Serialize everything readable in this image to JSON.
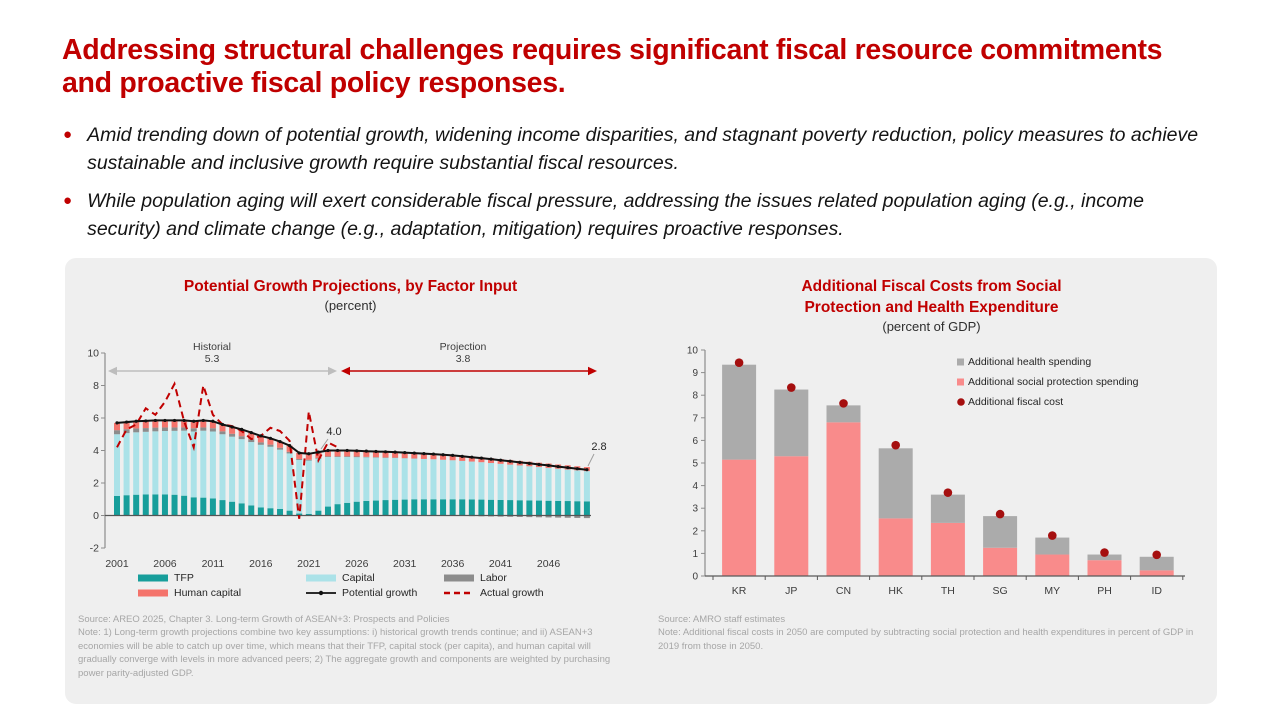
{
  "slide": {
    "title": "Addressing structural challenges requires significant fiscal resource commitments and proactive fiscal policy responses.",
    "bullets": [
      "Amid trending down of potential growth, widening income disparities, and stagnant poverty reduction, policy measures to achieve sustainable and inclusive growth require substantial fiscal resources.",
      "While population aging will exert considerable fiscal pressure, addressing the issues related population aging (e.g., income security) and climate change (e.g., adaptation, mitigation) requires proactive responses."
    ],
    "accent_color": "#C00000"
  },
  "left_chart": {
    "title": "Potential Growth Projections, by Factor Input",
    "subtitle": "(percent)",
    "annotations": {
      "historical_label": "Historial",
      "historical_value": "5.3",
      "projection_label": "Projection",
      "projection_value": "3.8",
      "mid_callout": "4.0",
      "end_callout": "2.8"
    },
    "legend": [
      {
        "label": "TFP",
        "swatch": "bar",
        "color": "#179E9B"
      },
      {
        "label": "Capital",
        "swatch": "bar",
        "color": "#ABE2E8"
      },
      {
        "label": "Labor",
        "swatch": "bar",
        "color": "#8C8C8C"
      },
      {
        "label": "Human capital",
        "swatch": "bar",
        "color": "#F4736B"
      },
      {
        "label": "Potential growth",
        "swatch": "line-dot",
        "color": "#111111"
      },
      {
        "label": "Actual growth",
        "swatch": "dash",
        "color": "#C00000"
      }
    ],
    "source": "Source: AREO 2025, Chapter 3. Long-term Growth of ASEAN+3: Prospects and Policies",
    "note": "Note: 1) Long-term growth projections combine two key assumptions: i) historical growth trends continue; and ii) ASEAN+3 economies will be able to catch up over time, which means that their TFP, capital stock (per capita), and human capital will gradually converge with levels in more advanced peers; 2) The aggregate growth and components are weighted by purchasing power parity-adjusted GDP."
  },
  "right_chart": {
    "title_lines": [
      "Additional Fiscal Costs from Social",
      "Protection and Health Expenditure"
    ],
    "subtitle": "(percent of GDP)",
    "legend": [
      {
        "label": "Additional health spending",
        "swatch": "square",
        "color": "#ABABAB"
      },
      {
        "label": "Additional social protection spending",
        "swatch": "square",
        "color": "#F98B8B"
      },
      {
        "label": "Additional fiscal cost",
        "swatch": "dot",
        "color": "#A50F0F"
      }
    ],
    "source": "Source: AMRO staff estimates",
    "note": "Note: Additional fiscal costs in 2050 are computed by subtracting social protection and health expenditures in percent of GDP in 2019 from those in 2050."
  },
  "chart_data": [
    {
      "type": "stacked-bar-line",
      "title": "Potential Growth Projections, by Factor Input",
      "ylabel": "percent",
      "ylim": [
        -2,
        10
      ],
      "x_start": 2001,
      "x_end": 2050,
      "x_ticks": [
        2001,
        2006,
        2011,
        2016,
        2021,
        2026,
        2031,
        2036,
        2041,
        2046
      ],
      "y_ticks": [
        -2,
        0,
        2,
        4,
        6,
        8,
        10
      ],
      "period_averages": {
        "historical": 5.3,
        "projection": 3.8,
        "callout_2023": 4.0,
        "callout_2050": 2.8
      },
      "series": [
        {
          "name": "TFP",
          "color": "#179E9B",
          "values": [
            1.2,
            1.25,
            1.28,
            1.3,
            1.3,
            1.3,
            1.28,
            1.22,
            1.12,
            1.1,
            1.05,
            0.95,
            0.85,
            0.75,
            0.62,
            0.5,
            0.45,
            0.4,
            0.3,
            0.12,
            0.1,
            0.3,
            0.55,
            0.7,
            0.78,
            0.85,
            0.9,
            0.92,
            0.95,
            0.97,
            0.98,
            1.0,
            1.0,
            1.0,
            1.0,
            1.0,
            1.0,
            0.99,
            0.98,
            0.97,
            0.96,
            0.95,
            0.94,
            0.93,
            0.92,
            0.91,
            0.9,
            0.89,
            0.88,
            0.87
          ]
        },
        {
          "name": "Capital",
          "color": "#ABE2E8",
          "values": [
            3.8,
            3.82,
            3.84,
            3.85,
            3.88,
            3.9,
            3.93,
            4.0,
            4.05,
            4.12,
            4.12,
            4.05,
            4.0,
            3.95,
            3.9,
            3.85,
            3.78,
            3.65,
            3.52,
            3.3,
            3.28,
            3.2,
            3.05,
            2.9,
            2.82,
            2.74,
            2.68,
            2.64,
            2.6,
            2.57,
            2.54,
            2.5,
            2.48,
            2.46,
            2.43,
            2.4,
            2.36,
            2.33,
            2.3,
            2.26,
            2.22,
            2.18,
            2.14,
            2.1,
            2.06,
            2.02,
            1.98,
            1.94,
            1.9,
            1.86
          ]
        },
        {
          "name": "Labor",
          "color": "#8C8C8C",
          "values": [
            0.25,
            0.24,
            0.24,
            0.23,
            0.23,
            0.22,
            0.21,
            0.2,
            0.2,
            0.2,
            0.2,
            0.18,
            0.18,
            0.18,
            0.17,
            0.15,
            0.13,
            0.12,
            0.1,
            0.06,
            0.05,
            0.04,
            0.04,
            0.04,
            0.04,
            0.04,
            0.03,
            0.03,
            0.02,
            0.02,
            0.01,
            0.01,
            0.0,
            0.0,
            -0.01,
            -0.02,
            -0.03,
            -0.04,
            -0.05,
            -0.06,
            -0.07,
            -0.08,
            -0.09,
            -0.1,
            -0.11,
            -0.12,
            -0.13,
            -0.14,
            -0.15,
            -0.16
          ]
        },
        {
          "name": "Human capital",
          "color": "#F4736B",
          "values": [
            0.45,
            0.44,
            0.44,
            0.44,
            0.44,
            0.43,
            0.43,
            0.43,
            0.43,
            0.43,
            0.43,
            0.42,
            0.42,
            0.42,
            0.41,
            0.4,
            0.39,
            0.38,
            0.38,
            0.37,
            0.37,
            0.36,
            0.36,
            0.36,
            0.36,
            0.35,
            0.35,
            0.35,
            0.35,
            0.34,
            0.34,
            0.33,
            0.33,
            0.32,
            0.32,
            0.32,
            0.31,
            0.31,
            0.3,
            0.3,
            0.29,
            0.29,
            0.28,
            0.28,
            0.27,
            0.27,
            0.26,
            0.26,
            0.25,
            0.25
          ]
        }
      ],
      "lines": [
        {
          "name": "Potential growth",
          "color": "#111111",
          "style": "solid-dot",
          "values": "sum_of_series"
        },
        {
          "name": "Actual growth",
          "color": "#C00000",
          "style": "dashed",
          "x_start": 2001,
          "values": [
            4.2,
            5.3,
            5.6,
            6.6,
            6.2,
            7.0,
            8.1,
            5.8,
            4.2,
            8.0,
            6.2,
            5.6,
            5.5,
            5.2,
            4.7,
            4.9,
            5.4,
            5.2,
            4.6,
            -0.2,
            6.4,
            3.4,
            4.5,
            4.2
          ]
        }
      ]
    },
    {
      "type": "stacked-bar",
      "title": "Additional Fiscal Costs from Social Protection and Health Expenditure",
      "ylabel": "percent of GDP",
      "ylim": [
        0,
        10
      ],
      "y_ticks": [
        0,
        1,
        2,
        3,
        4,
        5,
        6,
        7,
        8,
        9,
        10
      ],
      "categories": [
        "KR",
        "JP",
        "CN",
        "HK",
        "TH",
        "SG",
        "MY",
        "PH",
        "ID"
      ],
      "series": [
        {
          "name": "Additional social protection spending",
          "color": "#F98B8B",
          "values": [
            5.15,
            5.3,
            6.8,
            2.55,
            2.35,
            1.25,
            0.95,
            0.7,
            0.25
          ]
        },
        {
          "name": "Additional health spending",
          "color": "#ABABAB",
          "values": [
            4.2,
            2.95,
            0.75,
            3.1,
            1.25,
            1.4,
            0.75,
            0.25,
            0.6
          ]
        }
      ],
      "points": {
        "name": "Additional fiscal cost",
        "color": "#A50F0F",
        "values": [
          9.35,
          8.25,
          7.55,
          5.7,
          3.6,
          2.65,
          1.7,
          0.95,
          0.85
        ]
      }
    }
  ]
}
